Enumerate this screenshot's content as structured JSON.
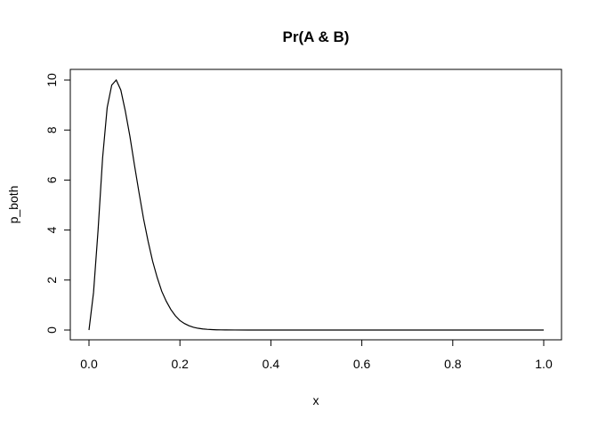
{
  "chart_data": {
    "type": "line",
    "title": "Pr(A & B)",
    "xlabel": "x",
    "ylabel": "p_both",
    "xlim": [
      0,
      1
    ],
    "ylim": [
      0,
      10
    ],
    "xticks": [
      0.0,
      0.2,
      0.4,
      0.6,
      0.8,
      1.0
    ],
    "xtick_labels": [
      "0.0",
      "0.2",
      "0.4",
      "0.6",
      "0.8",
      "1.0"
    ],
    "yticks": [
      0,
      2,
      4,
      6,
      8,
      10
    ],
    "ytick_labels": [
      "0",
      "2",
      "4",
      "6",
      "8",
      "10"
    ],
    "grid": false,
    "legend": "none",
    "series": [
      {
        "color": "#000000",
        "x": [
          0.0,
          0.01,
          0.02,
          0.03,
          0.04,
          0.05,
          0.06,
          0.07,
          0.08,
          0.09,
          0.1,
          0.11,
          0.12,
          0.13,
          0.14,
          0.15,
          0.16,
          0.17,
          0.18,
          0.19,
          0.2,
          0.21,
          0.22,
          0.23,
          0.24,
          0.25,
          0.26,
          0.27,
          0.28,
          0.29,
          0.3,
          0.32,
          0.35,
          0.4,
          0.5,
          0.6,
          0.7,
          0.8,
          0.9,
          1.0
        ],
        "y": [
          0.0,
          1.5,
          4.0,
          6.9,
          8.9,
          9.8,
          10.0,
          9.6,
          8.75,
          7.75,
          6.6,
          5.5,
          4.45,
          3.55,
          2.75,
          2.1,
          1.55,
          1.15,
          0.82,
          0.57,
          0.38,
          0.26,
          0.17,
          0.11,
          0.07,
          0.045,
          0.028,
          0.017,
          0.01,
          0.006,
          0.004,
          0.002,
          0.001,
          0.0,
          0.0,
          0.0,
          0.0,
          0.0,
          0.0,
          0.0
        ]
      }
    ]
  }
}
